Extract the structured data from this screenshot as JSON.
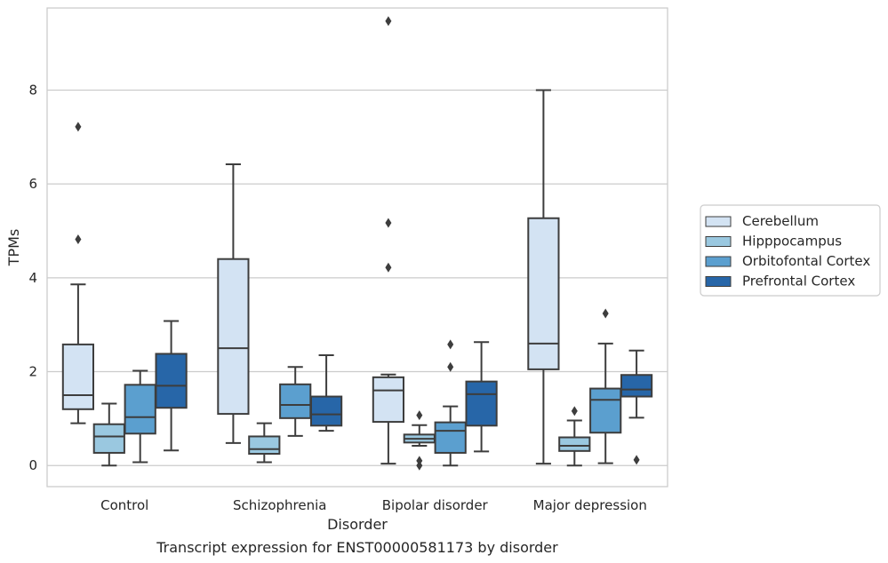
{
  "chart_data": {
    "type": "box",
    "caption": "Transcript expression for ENST00000581173 by disorder",
    "xlabel": "Disorder",
    "ylabel": "TPMs",
    "ylim": [
      -0.45,
      9.75
    ],
    "yticks": [
      0,
      2,
      4,
      6,
      8
    ],
    "grid": true,
    "legend_position": "right",
    "categories": [
      "Control",
      "Schizophrenia",
      "Bipolar disorder",
      "Major depression"
    ],
    "series": [
      {
        "name": "Cerebellum",
        "color": "#d3e3f3",
        "boxes": [
          {
            "whislo": 0.9,
            "q1": 1.2,
            "med": 1.5,
            "q3": 2.58,
            "whishi": 3.86,
            "fliers": [
              4.82,
              7.22
            ]
          },
          {
            "whislo": 0.48,
            "q1": 1.1,
            "med": 2.5,
            "q3": 4.4,
            "whishi": 6.42,
            "fliers": []
          },
          {
            "whislo": 0.04,
            "q1": 0.93,
            "med": 1.6,
            "q3": 1.88,
            "whishi": 1.94,
            "fliers": [
              4.22,
              5.17,
              9.47
            ]
          },
          {
            "whislo": 0.04,
            "q1": 2.05,
            "med": 2.6,
            "q3": 5.27,
            "whishi": 8.0,
            "fliers": []
          }
        ]
      },
      {
        "name": "Hipppocampus",
        "color": "#9ac8e0",
        "boxes": [
          {
            "whislo": 0.0,
            "q1": 0.27,
            "med": 0.62,
            "q3": 0.88,
            "whishi": 1.32,
            "fliers": []
          },
          {
            "whislo": 0.07,
            "q1": 0.25,
            "med": 0.35,
            "q3": 0.62,
            "whishi": 0.9,
            "fliers": []
          },
          {
            "whislo": 0.42,
            "q1": 0.49,
            "med": 0.57,
            "q3": 0.66,
            "whishi": 0.86,
            "fliers": [
              0.0,
              0.1,
              1.07
            ]
          },
          {
            "whislo": 0.0,
            "q1": 0.31,
            "med": 0.42,
            "q3": 0.6,
            "whishi": 0.96,
            "fliers": [
              1.16
            ]
          }
        ]
      },
      {
        "name": "Orbitofontal Cortex",
        "color": "#5b9fcf",
        "boxes": [
          {
            "whislo": 0.07,
            "q1": 0.68,
            "med": 1.03,
            "q3": 1.72,
            "whishi": 2.02,
            "fliers": []
          },
          {
            "whislo": 0.63,
            "q1": 1.01,
            "med": 1.29,
            "q3": 1.73,
            "whishi": 2.1,
            "fliers": []
          },
          {
            "whislo": 0.0,
            "q1": 0.27,
            "med": 0.74,
            "q3": 0.92,
            "whishi": 1.26,
            "fliers": [
              2.1,
              2.58
            ]
          },
          {
            "whislo": 0.05,
            "q1": 0.7,
            "med": 1.4,
            "q3": 1.64,
            "whishi": 2.6,
            "fliers": [
              3.24
            ]
          }
        ]
      },
      {
        "name": "Prefrontal Cortex",
        "color": "#2766a8",
        "boxes": [
          {
            "whislo": 0.32,
            "q1": 1.23,
            "med": 1.7,
            "q3": 2.38,
            "whishi": 3.08,
            "fliers": []
          },
          {
            "whislo": 0.74,
            "q1": 0.85,
            "med": 1.09,
            "q3": 1.47,
            "whishi": 2.35,
            "fliers": []
          },
          {
            "whislo": 0.3,
            "q1": 0.85,
            "med": 1.52,
            "q3": 1.79,
            "whishi": 2.63,
            "fliers": []
          },
          {
            "whislo": 1.02,
            "q1": 1.47,
            "med": 1.62,
            "q3": 1.93,
            "whishi": 2.45,
            "fliers": [
              0.12
            ]
          }
        ]
      }
    ]
  }
}
